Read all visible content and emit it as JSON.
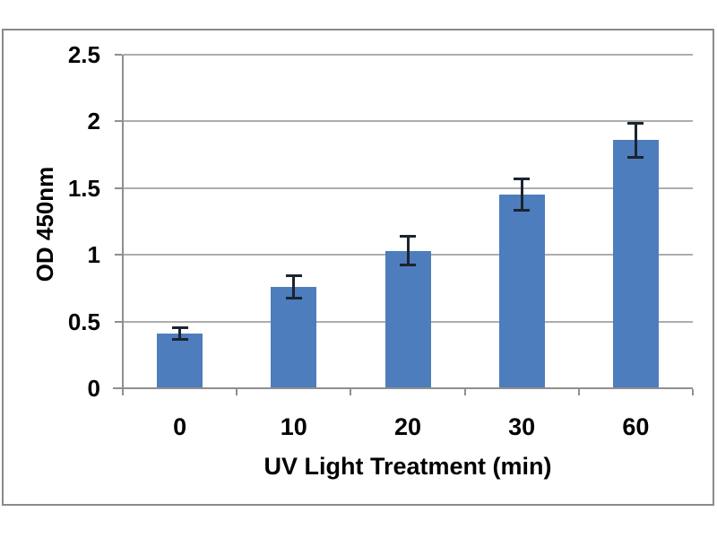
{
  "chart_data": {
    "type": "bar",
    "title": "",
    "xlabel": "UV Light Treatment (min)",
    "ylabel": "OD 450nm",
    "categories": [
      "0",
      "10",
      "20",
      "30",
      "60"
    ],
    "values": [
      0.41,
      0.76,
      1.03,
      1.45,
      1.86
    ],
    "error_bars": [
      0.05,
      0.09,
      0.11,
      0.12,
      0.13
    ],
    "ylim": [
      0,
      2.5
    ],
    "ytick_values": [
      0,
      0.5,
      1,
      1.5,
      2,
      2.5
    ],
    "ytick_labels": [
      "0",
      "0.5",
      "1",
      "1.5",
      "2",
      "2.5"
    ],
    "grid": true,
    "legend": false,
    "colors": {
      "bar_fill": "#4D7DBC",
      "error_bar": "#1C2430",
      "gridline": "#ADADAD",
      "axis_line": "#8F8F8F",
      "frame_border": "#8A8A8A",
      "text": "#000000",
      "background": "#FFFFFF"
    }
  }
}
